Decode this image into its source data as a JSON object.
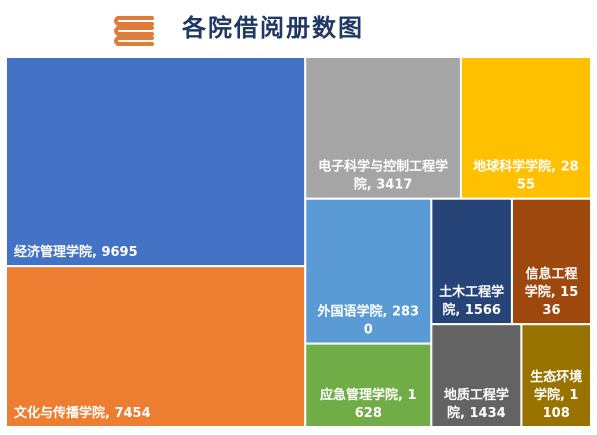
{
  "title": "各院借阅册数图",
  "icon": "books-stack-icon",
  "colors": {
    "title": "#1f3864",
    "icon": "#e07b39",
    "border": "#ffffff"
  },
  "chart_data": {
    "type": "treemap",
    "title": "各院借阅册数图",
    "items": [
      {
        "name": "经济管理学院",
        "value": 9695,
        "color": "#4472c4"
      },
      {
        "name": "文化与传播学院",
        "value": 7454,
        "color": "#ed7d31"
      },
      {
        "name": "电子科学与控制工程学院",
        "value": 3417,
        "color": "#a5a5a5"
      },
      {
        "name": "地球科学学院",
        "value": 2855,
        "color": "#ffc000"
      },
      {
        "name": "外国语学院",
        "value": 2830,
        "color": "#5b9bd5"
      },
      {
        "name": "应急管理学院",
        "value": 1628,
        "color": "#70ad47"
      },
      {
        "name": "土木工程学院",
        "value": 1566,
        "color": "#264478"
      },
      {
        "name": "信息工程学院",
        "value": 1536,
        "color": "#9e480e"
      },
      {
        "name": "地质工程学院",
        "value": 1434,
        "color": "#636363"
      },
      {
        "name": "生态环境学院",
        "value": 1108,
        "color": "#997300"
      }
    ]
  }
}
